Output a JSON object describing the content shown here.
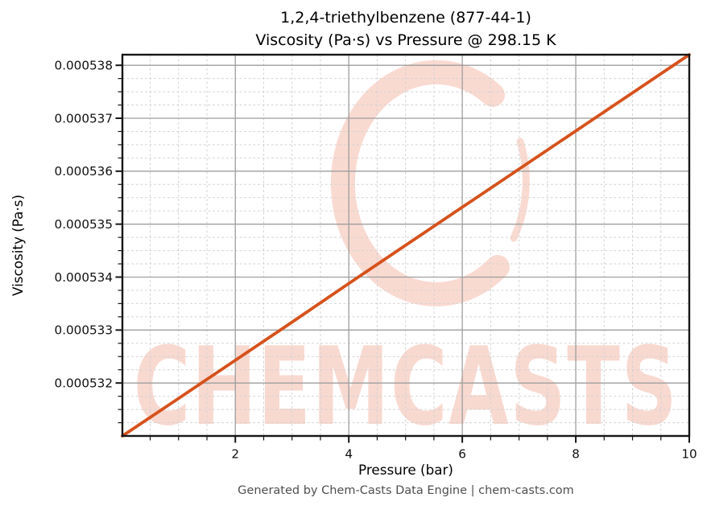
{
  "header": {
    "title_line1": "1,2,4-triethylbenzene (877-44-1)",
    "title_line2": "Viscosity (Pa·s) vs Pressure @ 298.15 K"
  },
  "footer": {
    "text": "Generated by Chem-Casts Data Engine | chem-casts.com"
  },
  "watermark": {
    "text": "CHEMCASTS",
    "logo": "c-swirl-logo",
    "text_color": "#efa28c",
    "logo_color": "#f3b5a3"
  },
  "chart_data": {
    "type": "line",
    "title": "1,2,4-triethylbenzene (877-44-1)\nViscosity (Pa·s) vs Pressure @ 298.15 K",
    "xlabel": "Pressure (bar)",
    "ylabel": "Viscosity (Pa·s)",
    "xlim": [
      0.01,
      10
    ],
    "ylim": [
      0.000531,
      0.0005382
    ],
    "x_major_ticks": [
      2,
      4,
      6,
      8,
      10
    ],
    "x_tick_labels": [
      "2",
      "4",
      "6",
      "8",
      "10"
    ],
    "x_minor_step": 0.5,
    "y_major_ticks": [
      0.000532,
      0.000533,
      0.000534,
      0.000535,
      0.000536,
      0.000537,
      0.000538
    ],
    "y_tick_labels": [
      "0.000532",
      "0.000533",
      "0.000534",
      "0.000535",
      "0.000536",
      "0.000537",
      "0.000538"
    ],
    "y_minor_step": 2.5e-07,
    "grid": {
      "major": true,
      "minor": true,
      "major_color": "#9e9e9e",
      "minor_color": "#d2d2d2"
    },
    "legend": "none",
    "series": [
      {
        "name": "viscosity",
        "color": "#d6521c",
        "x": [
          0.01,
          1,
          2,
          3,
          4,
          5,
          6,
          7,
          8,
          9,
          10
        ],
        "y": [
          0.000531,
          0.00053171,
          0.00053243,
          0.00053315,
          0.00053388,
          0.0005346,
          0.00053532,
          0.00053604,
          0.00053676,
          0.00053748,
          0.0005382
        ]
      }
    ]
  }
}
